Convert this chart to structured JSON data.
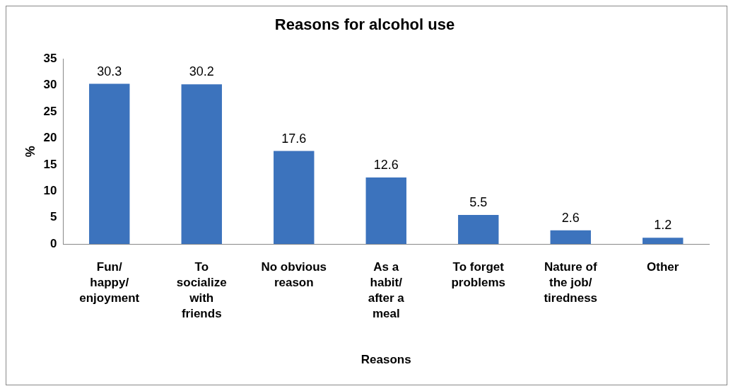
{
  "chart_data": {
    "type": "bar",
    "title": "Reasons for alcohol use",
    "xlabel": "Reasons",
    "ylabel": "%",
    "categories": [
      "Fun/ happy/ enjoyment",
      "To socialize with friends",
      "No obvious reason",
      "As a habit/ after a meal",
      "To forget problems",
      "Nature of the job/ tiredness",
      "Other"
    ],
    "values": [
      30.3,
      30.2,
      17.6,
      12.6,
      5.5,
      2.6,
      1.2
    ],
    "color": "#3c73bd",
    "ylim": [
      0,
      35
    ],
    "yticks": [
      0,
      5,
      10,
      15,
      20,
      25,
      30,
      35
    ],
    "grid": false,
    "legend": false,
    "data_labels": true
  }
}
